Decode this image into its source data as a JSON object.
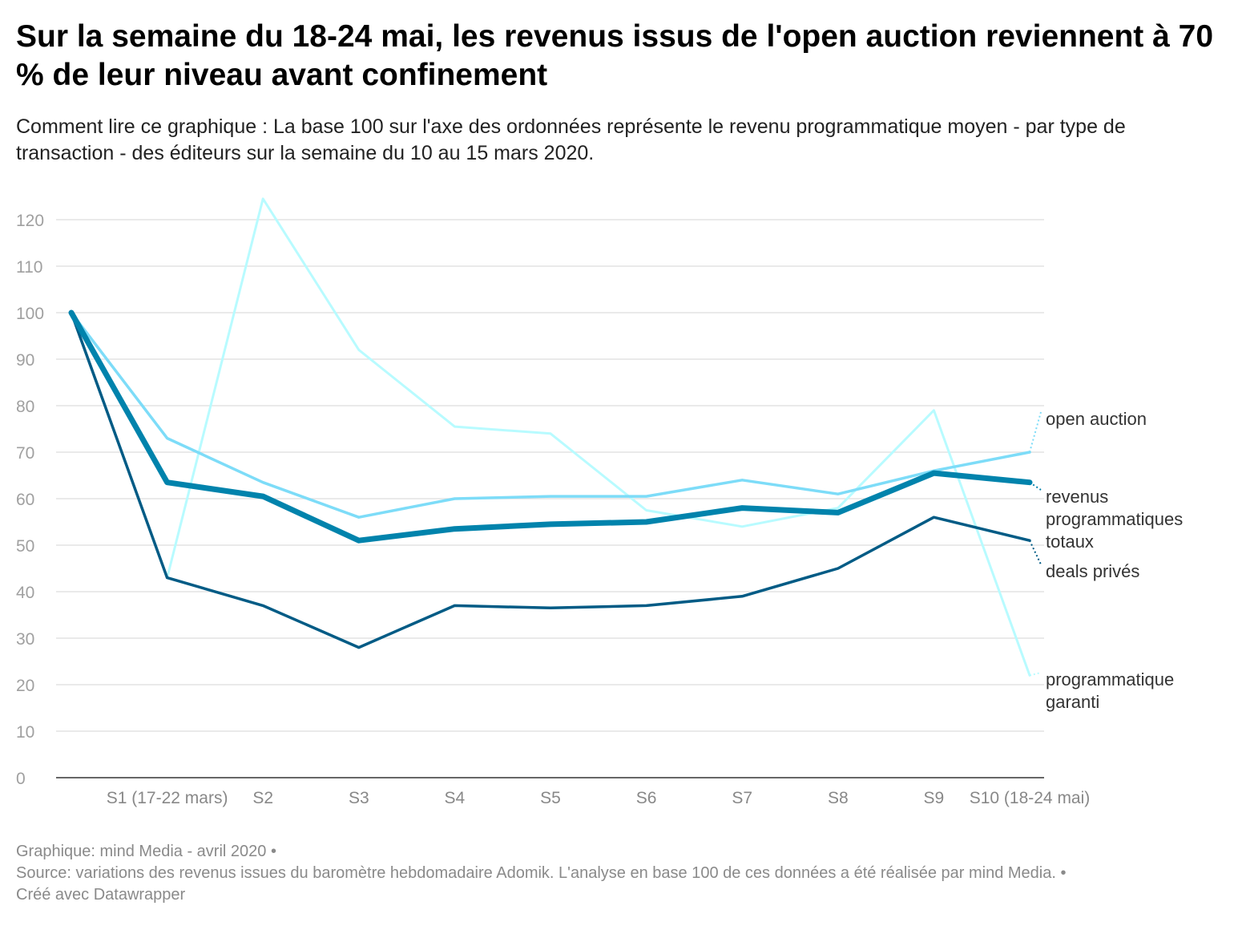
{
  "title": "Sur la semaine du 18-24 mai, les revenus issus de l'open auction reviennent à 70 % de leur niveau avant confinement",
  "subtitle": "Comment lire ce graphique : La base 100 sur l'axe des ordonnées représente le revenu programmatique moyen - par type de transaction - des éditeurs sur la semaine du 10 au 15 mars 2020.",
  "footer": {
    "line1": "Graphique: mind Media - avril 2020 •",
    "line2": "Source: variations des revenus issues du baromètre hebdomadaire Adomik. L'analyse en base 100 de ces données a été réalisée par mind Media. •",
    "line3": "Créé avec Datawrapper"
  },
  "chart_data": {
    "type": "line",
    "x": [
      "",
      "S1 (17-22 mars)",
      "S2",
      "S3",
      "S4",
      "S5",
      "S6",
      "S7",
      "S8",
      "S9",
      "S10 (18-24 mai)"
    ],
    "y_ticks": [
      0,
      10,
      20,
      30,
      40,
      50,
      60,
      70,
      80,
      90,
      100,
      110,
      120
    ],
    "ylim": [
      0,
      125
    ],
    "grid": true,
    "legend": "inline labels at right end of lines",
    "series": [
      {
        "name": "programmatique garanti",
        "label_lines": [
          "programmatique",
          "garanti"
        ],
        "color": "#b8fbff",
        "width": 3,
        "values": [
          100,
          43,
          124.5,
          92,
          75.5,
          74,
          57.5,
          54,
          58,
          79,
          22
        ]
      },
      {
        "name": "open auction",
        "label_lines": [
          "open auction"
        ],
        "color": "#7ddcf8",
        "width": 3.5,
        "values": [
          100,
          73,
          63.5,
          56,
          60,
          60.5,
          60.5,
          64,
          61,
          66,
          70
        ]
      },
      {
        "name": "deals privés",
        "label_lines": [
          "deals privés"
        ],
        "color": "#005b85",
        "width": 3.5,
        "values": [
          100,
          43,
          37,
          28,
          37,
          36.5,
          37,
          39,
          45,
          56,
          51
        ]
      },
      {
        "name": "revenus programmatiques totaux",
        "label_lines": [
          "revenus",
          "programmatiques",
          "totaux"
        ],
        "color": "#0083ac",
        "width": 7,
        "values": [
          100,
          63.5,
          60.5,
          51,
          53.5,
          54.5,
          55,
          58,
          57,
          65.5,
          63.5
        ]
      }
    ]
  }
}
